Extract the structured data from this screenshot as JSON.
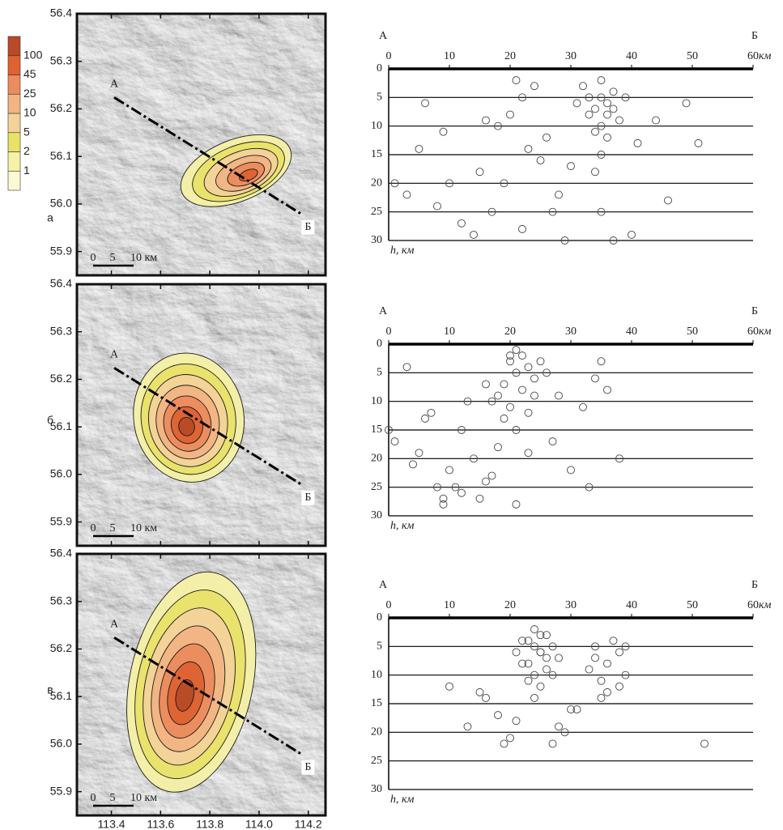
{
  "panel_labels": [
    "а",
    "б",
    "в"
  ],
  "colorbar": {
    "labels": [
      1,
      2,
      5,
      10,
      25,
      45,
      100
    ],
    "colors": [
      "#fbf9d6",
      "#f5f1a6",
      "#e9e26a",
      "#f4d39a",
      "#f2b483",
      "#ec8b5e",
      "#de6232",
      "#b94a27"
    ]
  },
  "map_axes": {
    "ylim": [
      55.85,
      56.4
    ],
    "yticks": [
      {
        "value": 55.9,
        "label": "55.9"
      },
      {
        "value": 56,
        "label": "56.0"
      },
      56.1,
      56.2,
      56.3,
      56.4
    ],
    "xlim": [
      113.26,
      114.27
    ],
    "xticks": [
      113.4,
      113.6,
      113.8,
      {
        "value": 114,
        "label": "114.0"
      },
      114.2
    ],
    "profile_labels": [
      "А",
      "Б"
    ],
    "scale_labels": [
      "0",
      "5",
      "10 км"
    ]
  },
  "chart_data": [
    {
      "type": "scatter",
      "corner_labels": [
        "А",
        "Б"
      ],
      "x_unit": "км",
      "y_label": "h, км",
      "y_inverted": true,
      "color": "#444444",
      "grid": true,
      "xlim": [
        0,
        60
      ],
      "xticks": [
        0,
        10,
        20,
        30,
        40,
        50,
        60
      ],
      "ylim": [
        0,
        30
      ],
      "yticks": [
        0,
        5,
        10,
        15,
        20,
        25,
        30
      ],
      "x": [
        35,
        34,
        36,
        33,
        37,
        35,
        38,
        32,
        36,
        34,
        35,
        37,
        33,
        36,
        31,
        39,
        35,
        34,
        22,
        20,
        24,
        18,
        26,
        21,
        19,
        23,
        17,
        28,
        30,
        41,
        44,
        10,
        8,
        5,
        12,
        15,
        27,
        29,
        46,
        49,
        51,
        3,
        9,
        14,
        25,
        35,
        37,
        40,
        1,
        6,
        22,
        16
      ],
      "y": [
        5,
        7,
        6,
        8,
        4,
        10,
        9,
        3,
        12,
        11,
        2,
        7,
        5,
        8,
        6,
        5,
        15,
        18,
        5,
        8,
        3,
        10,
        12,
        2,
        20,
        14,
        25,
        22,
        17,
        13,
        9,
        20,
        24,
        14,
        27,
        18,
        25,
        30,
        23,
        6,
        13,
        22,
        11,
        29,
        16,
        25,
        30,
        29,
        20,
        6,
        28,
        9
      ]
    },
    {
      "type": "scatter",
      "corner_labels": [
        "А",
        "Б"
      ],
      "x_unit": "км",
      "y_label": "h, км",
      "y_inverted": true,
      "color": "#444444",
      "grid": true,
      "xlim": [
        0,
        60
      ],
      "xticks": [
        0,
        10,
        20,
        30,
        40,
        50,
        60
      ],
      "ylim": [
        0,
        30
      ],
      "yticks": [
        0,
        5,
        10,
        15,
        20,
        25,
        30
      ],
      "x": [
        20,
        21,
        22,
        19,
        23,
        18,
        24,
        21,
        20,
        22,
        17,
        25,
        19,
        23,
        16,
        26,
        21,
        18,
        24,
        20,
        12,
        14,
        10,
        8,
        5,
        3,
        1,
        9,
        11,
        13,
        15,
        17,
        7,
        6,
        28,
        30,
        33,
        34,
        35,
        36,
        38,
        32,
        27,
        23,
        21,
        16,
        12,
        9,
        0,
        4
      ],
      "y": [
        3,
        5,
        2,
        7,
        4,
        9,
        6,
        1,
        11,
        8,
        10,
        3,
        13,
        12,
        7,
        5,
        15,
        18,
        9,
        2,
        15,
        20,
        22,
        25,
        19,
        4,
        17,
        28,
        25,
        10,
        27,
        23,
        12,
        13,
        9,
        22,
        25,
        6,
        3,
        8,
        20,
        11,
        17,
        19,
        28,
        24,
        26,
        27,
        15,
        21
      ]
    },
    {
      "type": "scatter",
      "corner_labels": [
        "А",
        "Б"
      ],
      "x_unit": "км",
      "y_label": "h, км",
      "y_inverted": true,
      "color": "#444444",
      "grid": true,
      "xlim": [
        0,
        60
      ],
      "xticks": [
        0,
        10,
        20,
        30,
        40,
        50,
        60
      ],
      "ylim": [
        0,
        30
      ],
      "yticks": [
        0,
        5,
        10,
        15,
        20,
        25,
        30
      ],
      "x": [
        24,
        25,
        23,
        26,
        22,
        27,
        24,
        25,
        23,
        26,
        21,
        28,
        24,
        25,
        22,
        27,
        23,
        26,
        24,
        25,
        34,
        36,
        38,
        35,
        37,
        33,
        39,
        36,
        34,
        38,
        10,
        13,
        16,
        19,
        29,
        31,
        21,
        27,
        52,
        30,
        15,
        18,
        39,
        35,
        20,
        28
      ],
      "y": [
        5,
        6,
        4,
        7,
        8,
        5,
        10,
        3,
        11,
        9,
        6,
        7,
        2,
        12,
        4,
        10,
        8,
        3,
        14,
        6,
        5,
        8,
        6,
        11,
        4,
        9,
        10,
        13,
        7,
        12,
        12,
        19,
        14,
        22,
        20,
        16,
        18,
        22,
        22,
        16,
        13,
        17,
        5,
        14,
        21,
        19
      ]
    }
  ]
}
